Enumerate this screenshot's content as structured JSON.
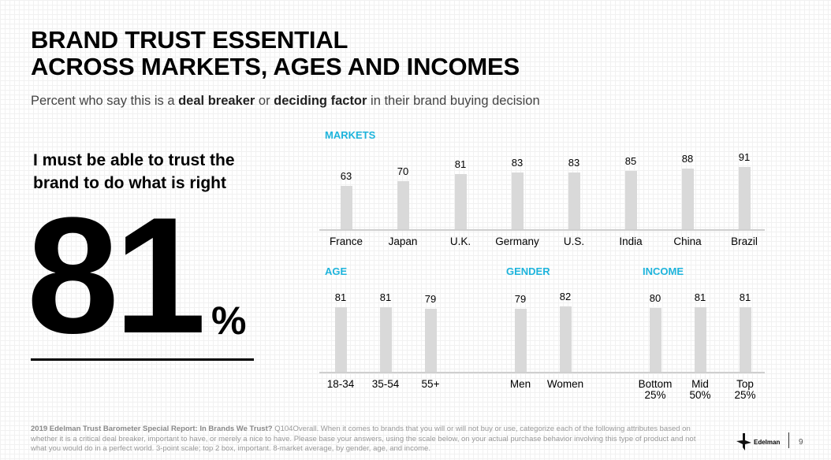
{
  "title_line1": "BRAND TRUST ESSENTIAL",
  "title_line2": "ACROSS MARKETS, AGES AND INCOMES",
  "subtitle": {
    "pre": "Percent who say this is a ",
    "b1": "deal breaker",
    "mid": " or ",
    "b2": "deciding factor",
    "post": " in their brand buying decision"
  },
  "statement": "I must be able to trust the brand to do what is right",
  "headline_value": "81",
  "headline_unit": "%",
  "chart_data": [
    {
      "type": "bar",
      "title": "MARKETS",
      "categories": [
        "France",
        "Japan",
        "U.K.",
        "Germany",
        "U.S.",
        "India",
        "China",
        "Brazil"
      ],
      "values": [
        63,
        70,
        81,
        83,
        83,
        85,
        88,
        91
      ]
    },
    {
      "type": "bar",
      "title": "AGE",
      "categories": [
        "18-34",
        "35-54",
        "55+"
      ],
      "values": [
        81,
        81,
        79
      ]
    },
    {
      "type": "bar",
      "title": "GENDER",
      "categories": [
        "Men",
        "Women"
      ],
      "values": [
        79,
        82
      ]
    },
    {
      "type": "bar",
      "title": "INCOME",
      "categories": [
        "Bottom 25%",
        "Mid 50%",
        "Top 25%"
      ],
      "values": [
        80,
        81,
        81
      ]
    }
  ],
  "colors": {
    "section_title": "#1eb4dc",
    "bar": "#d9d9d9"
  },
  "footer": {
    "bold": "2019 Edelman Trust Barometer Special Report: In Brands We Trust?",
    "text": " Q104Overall. When it comes to brands that you will or will not buy or use, categorize each of the following attributes based on whether it is a critical deal breaker, important to have, or merely a nice to have. Please base your answers, using the scale below, on your actual purchase behavior involving this type of product and not what you would do in a perfect world. 3-point scale; top 2 box, important. 8-market average, by gender, age, and income."
  },
  "logo": "Edelman",
  "page_number": "9"
}
